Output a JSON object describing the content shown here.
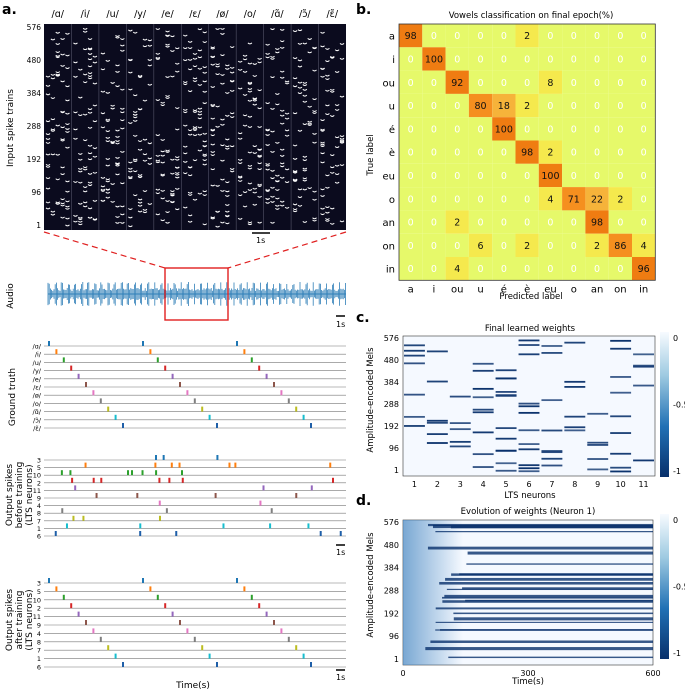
{
  "panel_labels": [
    "a.",
    "b.",
    "c.",
    "d."
  ],
  "panel_a": {
    "raster_ylabel": "Input spike trains",
    "raster_yticks": [
      "576",
      "480",
      "384",
      "288",
      "192",
      "96",
      "1"
    ],
    "vowels": [
      "/ɑ/",
      "/i/",
      "/u/",
      "/y/",
      "/e/",
      "/ɛ/",
      "/ø/",
      "/o/",
      "/ɑ̃/",
      "/ɔ̃/",
      "/ɛ̃/"
    ],
    "scalebar": "1s",
    "audio_label": "Audio",
    "gt_label": "Ground truth",
    "gt_rows": [
      "/ɑ/",
      "/i/",
      "/u/",
      "/y/",
      "/e/",
      "/ɛ/",
      "/ø/",
      "/o/",
      "/ɑ̃/",
      "/ɔ̃/",
      "/ɛ̃/"
    ],
    "before_label": [
      "Output spikes",
      "before training",
      "(LTS neurons)"
    ],
    "before_rows": [
      "3",
      "5",
      "10",
      "2",
      "11",
      "9",
      "4",
      "8",
      "7",
      "1",
      "6"
    ],
    "after_label": [
      "Output spikes",
      "after training",
      "(LTS neurons)"
    ],
    "after_rows": [
      "3",
      "5",
      "10",
      "2",
      "11",
      "9",
      "4",
      "8",
      "7",
      "1",
      "6"
    ],
    "xlabel": "Time(s)"
  },
  "chart_data": [
    {
      "type": "heatmap",
      "title": "Vowels classification on final epoch(%)",
      "xlabel": "Predicted label",
      "ylabel": "True label",
      "categories": [
        "a",
        "i",
        "ou",
        "u",
        "é",
        "è",
        "eu",
        "o",
        "an",
        "on",
        "in"
      ],
      "values": [
        [
          98,
          0,
          0,
          0,
          0,
          2,
          0,
          0,
          0,
          0,
          0
        ],
        [
          0,
          100,
          0,
          0,
          0,
          0,
          0,
          0,
          0,
          0,
          0
        ],
        [
          0,
          0,
          92,
          0,
          0,
          0,
          8,
          0,
          0,
          0,
          0
        ],
        [
          0,
          0,
          0,
          80,
          18,
          2,
          0,
          0,
          0,
          0,
          0
        ],
        [
          0,
          0,
          0,
          0,
          100,
          0,
          0,
          0,
          0,
          0,
          0
        ],
        [
          0,
          0,
          0,
          0,
          0,
          98,
          2,
          0,
          0,
          0,
          0
        ],
        [
          0,
          0,
          0,
          0,
          0,
          0,
          100,
          0,
          0,
          0,
          0
        ],
        [
          0,
          0,
          0,
          0,
          0,
          0,
          4,
          71,
          22,
          2,
          0
        ],
        [
          0,
          0,
          2,
          0,
          0,
          0,
          0,
          0,
          98,
          0,
          0
        ],
        [
          0,
          0,
          0,
          6,
          0,
          2,
          0,
          0,
          2,
          86,
          4
        ],
        [
          0,
          0,
          4,
          0,
          0,
          0,
          0,
          0,
          0,
          0,
          96
        ]
      ]
    },
    {
      "type": "heatmap",
      "title": "Final learned weights",
      "xlabel": "LTS neurons",
      "ylabel": "Amplitude-encoded Mels",
      "x_ticks": [
        "1",
        "2",
        "3",
        "4",
        "5",
        "6",
        "7",
        "8",
        "9",
        "10",
        "11"
      ],
      "y_ticks": [
        "576",
        "480",
        "384",
        "288",
        "192",
        "96",
        "1"
      ],
      "colorbar_ticks": [
        "0",
        "-0.5",
        "-1"
      ],
      "colorbar_range": [
        -1,
        0
      ]
    },
    {
      "type": "heatmap",
      "title": "Evolution of weights (Neuron 1)",
      "xlabel": "Time(s)",
      "ylabel": "Amplitude-encoded Mels",
      "x_ticks": [
        "0",
        "300",
        "600"
      ],
      "y_ticks": [
        "576",
        "480",
        "384",
        "288",
        "192",
        "96",
        "1"
      ],
      "colorbar_ticks": [
        "0",
        "-0.5",
        "-1"
      ],
      "colorbar_range": [
        -1,
        0
      ]
    }
  ],
  "colors": {
    "raster_bg": "#0b0b1e",
    "audio": "#2f7fb8",
    "zoom_box": "#e02020",
    "weights_dark": "#08306b",
    "weights_light": "#f5f9ff"
  },
  "spike_colors": [
    "#1f77b4",
    "#ff7f0e",
    "#2ca02c",
    "#d62728",
    "#9467bd",
    "#8c564b",
    "#e377c2",
    "#7f7f7f",
    "#bcbd22",
    "#17becf",
    "#1f5fa8"
  ]
}
